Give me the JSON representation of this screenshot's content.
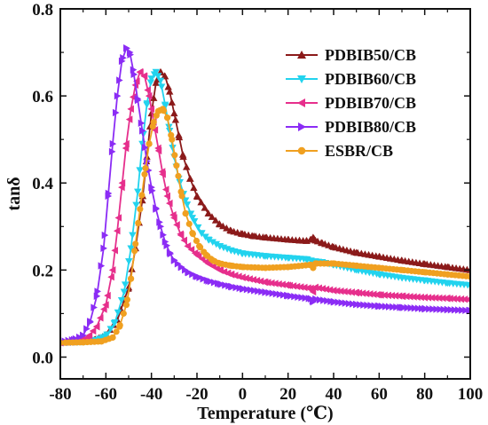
{
  "chart_data": {
    "type": "line",
    "title": "",
    "xlabel": "Temperature (℃)",
    "ylabel": "tanδ",
    "xlim": [
      -80,
      100
    ],
    "ylim": [
      -0.05,
      0.8
    ],
    "xticks": [
      -80,
      -60,
      -40,
      -20,
      0,
      20,
      40,
      60,
      80,
      100
    ],
    "xtick_labels": [
      "-80",
      "-60",
      "-40",
      "-20",
      "0",
      "20",
      "40",
      "60",
      "80",
      "100"
    ],
    "yticks": [
      0.0,
      0.2,
      0.4,
      0.6,
      0.8
    ],
    "ytick_labels": [
      "0.0",
      "0.2",
      "0.4",
      "0.6",
      "0.8"
    ],
    "legend_position": "top-right",
    "grid": false,
    "series": [
      {
        "name": "PDBIB50/CB",
        "color": "#8b1a1a",
        "marker": "triangle-up",
        "x": [
          -80,
          -70,
          -65,
          -60,
          -55,
          -50,
          -47,
          -44,
          -42,
          -40,
          -38,
          -36,
          -34,
          -32,
          -30,
          -28,
          -26,
          -23,
          -20,
          -15,
          -10,
          -5,
          0,
          5,
          10,
          20,
          25,
          28,
          30,
          31,
          32,
          35,
          40,
          50,
          60,
          70,
          80,
          90,
          100
        ],
        "y": [
          0.033,
          0.036,
          0.04,
          0.05,
          0.085,
          0.16,
          0.25,
          0.36,
          0.46,
          0.56,
          0.63,
          0.655,
          0.645,
          0.61,
          0.56,
          0.51,
          0.46,
          0.41,
          0.37,
          0.33,
          0.305,
          0.29,
          0.283,
          0.278,
          0.275,
          0.27,
          0.268,
          0.267,
          0.27,
          0.275,
          0.268,
          0.262,
          0.253,
          0.24,
          0.231,
          0.222,
          0.214,
          0.207,
          0.2
        ]
      },
      {
        "name": "PDBIB60/CB",
        "color": "#22d3ee",
        "marker": "triangle-down",
        "x": [
          -80,
          -70,
          -65,
          -60,
          -56,
          -52,
          -49,
          -46,
          -44,
          -42,
          -40,
          -38,
          -36,
          -34,
          -32,
          -30,
          -28,
          -25,
          -22,
          -18,
          -15,
          -10,
          -5,
          0,
          10,
          20,
          28,
          30,
          31,
          32,
          35,
          40,
          50,
          60,
          70,
          80,
          90,
          100
        ],
        "y": [
          0.033,
          0.035,
          0.038,
          0.048,
          0.08,
          0.15,
          0.25,
          0.38,
          0.49,
          0.58,
          0.64,
          0.655,
          0.635,
          0.58,
          0.52,
          0.46,
          0.41,
          0.36,
          0.32,
          0.285,
          0.27,
          0.255,
          0.245,
          0.238,
          0.232,
          0.228,
          0.225,
          0.222,
          0.215,
          0.22,
          0.218,
          0.212,
          0.2,
          0.19,
          0.182,
          0.176,
          0.17,
          0.165
        ]
      },
      {
        "name": "PDBIB70/CB",
        "color": "#e62f8c",
        "marker": "triangle-left",
        "x": [
          -80,
          -72,
          -68,
          -64,
          -60,
          -57,
          -55,
          -53,
          -51,
          -49,
          -47,
          -45,
          -43,
          -41,
          -39,
          -37,
          -35,
          -33,
          -30,
          -27,
          -24,
          -20,
          -15,
          -10,
          -5,
          0,
          10,
          20,
          30,
          31,
          32,
          40,
          50,
          60,
          70,
          80,
          90,
          100
        ],
        "y": [
          0.033,
          0.036,
          0.045,
          0.07,
          0.12,
          0.2,
          0.29,
          0.39,
          0.49,
          0.57,
          0.625,
          0.655,
          0.645,
          0.6,
          0.54,
          0.48,
          0.42,
          0.37,
          0.32,
          0.28,
          0.255,
          0.235,
          0.215,
          0.2,
          0.19,
          0.183,
          0.172,
          0.165,
          0.158,
          0.15,
          0.16,
          0.153,
          0.148,
          0.143,
          0.14,
          0.137,
          0.135,
          0.132
        ]
      },
      {
        "name": "PDBIB80/CB",
        "color": "#8b2cf5",
        "marker": "triangle-right",
        "x": [
          -80,
          -74,
          -70,
          -67,
          -64,
          -61,
          -59,
          -57,
          -55,
          -53,
          -51,
          -49.5,
          -48,
          -46,
          -44,
          -42,
          -40,
          -38,
          -36,
          -34,
          -32,
          -30,
          -27,
          -24,
          -20,
          -15,
          -10,
          -5,
          0,
          10,
          20,
          30,
          31,
          32,
          40,
          50,
          60,
          70,
          80,
          90,
          100
        ],
        "y": [
          0.035,
          0.04,
          0.05,
          0.08,
          0.14,
          0.25,
          0.37,
          0.49,
          0.6,
          0.68,
          0.71,
          0.7,
          0.66,
          0.59,
          0.52,
          0.45,
          0.39,
          0.34,
          0.3,
          0.265,
          0.24,
          0.222,
          0.207,
          0.195,
          0.185,
          0.175,
          0.168,
          0.162,
          0.157,
          0.149,
          0.141,
          0.134,
          0.127,
          0.133,
          0.127,
          0.121,
          0.117,
          0.114,
          0.111,
          0.109,
          0.107
        ]
      },
      {
        "name": "ESBR/CB",
        "color": "#f0a020",
        "marker": "circle",
        "x": [
          -80,
          -70,
          -62,
          -57,
          -54,
          -51,
          -49,
          -47,
          -45,
          -43,
          -41,
          -39,
          -37,
          -35,
          -33,
          -31,
          -29,
          -27,
          -25,
          -22,
          -19,
          -16,
          -13,
          -10,
          -5,
          0,
          10,
          20,
          30,
          31,
          32,
          40,
          50,
          60,
          70,
          80,
          90,
          100
        ],
        "y": [
          0.033,
          0.034,
          0.036,
          0.045,
          0.07,
          0.12,
          0.18,
          0.26,
          0.34,
          0.42,
          0.49,
          0.54,
          0.565,
          0.57,
          0.55,
          0.5,
          0.44,
          0.38,
          0.33,
          0.285,
          0.255,
          0.235,
          0.222,
          0.215,
          0.21,
          0.207,
          0.205,
          0.207,
          0.212,
          0.205,
          0.215,
          0.215,
          0.21,
          0.205,
          0.2,
          0.195,
          0.19,
          0.185
        ]
      }
    ]
  }
}
